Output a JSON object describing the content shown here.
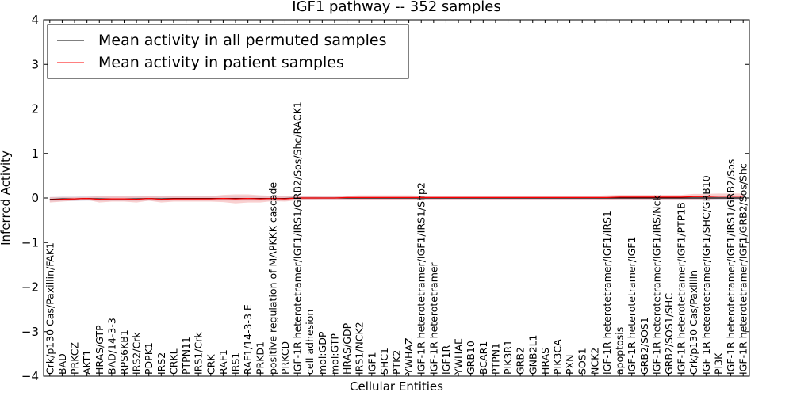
{
  "chart_data": {
    "type": "line",
    "title": "IGF1 pathway -- 352 samples",
    "xlabel": "Cellular Entities",
    "ylabel": "Inferred Activity",
    "ylim": [
      -4,
      4
    ],
    "yticks": [
      -4,
      -3,
      -2,
      -1,
      0,
      1,
      2,
      3,
      4
    ],
    "ytick_labels": [
      "−4",
      "−3",
      "−2",
      "−1",
      "0",
      "1",
      "2",
      "3",
      "4"
    ],
    "grid": false,
    "legend_position": "top-left",
    "colors": {
      "permuted": "#000000",
      "patient": "#ff0000",
      "patient_band": "#f4a9a9",
      "permuted_band": "#c8c8dc"
    },
    "categories": [
      "Crk/p130 Cas/Paxillin/FAK1",
      "BAD",
      "PRKCZ",
      "AKT1",
      "HRAS/GTP",
      "BAD/14-3-3",
      "RPS6KB1",
      "IRS2/Crk",
      "PDPK1",
      "IRS2",
      "CRKL",
      "PTPN11",
      "IRS1/Crk",
      "CRK",
      "RAF1",
      "IRS1",
      "RAF1/14-3-3 E",
      "PRKD1",
      "positive regulation of MAPKKK cascade",
      "PRKCD",
      "IGF-1R heterotetramer/IGF1/IRS1/GRB2/Sos/Shc/RACK1",
      "cell adhesion",
      "mol:GDP",
      "mol:GTP",
      "HRAS/GDP",
      "IRS1/NCK2",
      "IGF1",
      "SHC1",
      "PTK2",
      "YWHAZ",
      "IGF-1R heterotetramer/IGF1/IRS1/Shp2",
      "IGF-1R heterotetramer",
      "IGF1R",
      "YWHAE",
      "GRB10",
      "BCAR1",
      "PTPN1",
      "PIK3R1",
      "GRB2",
      "GNB2L1",
      "HRAS",
      "PIK3CA",
      "PXN",
      "SOS1",
      "NCK2",
      "IGF-1R heterotetramer/IGF1/IRS1",
      "apoptosis",
      "IGF-1R heterotetramer/IGF1",
      "GRB2/SOS1",
      "IGF-1R heterotetramer/IGF1/IRS/Nck",
      "GRB2/SOS1/SHC",
      "IGF-1R heterotetramer/IGF1/PTP1B",
      "Crk/p130 Cas/Paxillin",
      "IGF-1R heterotetramer/IGF1/SHC/GRB10",
      "PI3K",
      "IGF-1R heterotetramer/IGF1/IRS1/GRB2/Sos",
      "IGF-1R heterotetramer/IGF1/GRB2/Sos/Shc"
    ],
    "series": [
      {
        "name": "Mean activity in all permuted samples",
        "color": "#000000",
        "values": [
          -0.03,
          -0.02,
          -0.02,
          -0.01,
          -0.02,
          -0.02,
          -0.02,
          -0.02,
          -0.01,
          -0.02,
          -0.01,
          -0.01,
          -0.01,
          -0.01,
          -0.01,
          -0.01,
          -0.01,
          -0.01,
          -0.01,
          -0.01,
          0.0,
          0.0,
          0.0,
          0.0,
          0.0,
          0.0,
          0.0,
          0.0,
          0.0,
          0.0,
          0.0,
          0.0,
          0.0,
          0.0,
          0.0,
          0.0,
          0.0,
          0.0,
          0.0,
          0.0,
          0.0,
          0.0,
          0.0,
          0.0,
          0.0,
          0.0,
          0.0,
          0.0,
          0.0,
          0.0,
          0.0,
          0.0,
          0.0,
          0.0,
          0.0,
          0.0,
          0.0
        ]
      },
      {
        "name": "Mean activity in patient samples",
        "color": "#ff0000",
        "values": [
          -0.04,
          -0.03,
          -0.02,
          -0.01,
          -0.03,
          -0.02,
          -0.02,
          -0.03,
          -0.01,
          -0.03,
          -0.02,
          -0.02,
          -0.02,
          -0.02,
          -0.01,
          -0.02,
          -0.01,
          -0.02,
          -0.01,
          -0.02,
          0.0,
          0.0,
          0.0,
          0.0,
          0.01,
          0.01,
          0.01,
          0.01,
          0.01,
          0.01,
          0.01,
          0.01,
          0.01,
          0.01,
          0.01,
          0.01,
          0.01,
          0.01,
          0.01,
          0.01,
          0.01,
          0.01,
          0.01,
          0.01,
          0.01,
          0.01,
          0.02,
          0.02,
          0.02,
          0.02,
          0.02,
          0.02,
          0.03,
          0.03,
          0.04,
          0.04,
          0.04
        ],
        "band_halfwidth": [
          0.06,
          0.05,
          0.04,
          0.03,
          0.07,
          0.06,
          0.06,
          0.07,
          0.05,
          0.07,
          0.06,
          0.06,
          0.06,
          0.06,
          0.08,
          0.1,
          0.09,
          0.08,
          0.06,
          0.06,
          0.05,
          0.04,
          0.03,
          0.03,
          0.04,
          0.05,
          0.05,
          0.05,
          0.05,
          0.05,
          0.04,
          0.04,
          0.04,
          0.04,
          0.04,
          0.04,
          0.04,
          0.04,
          0.04,
          0.04,
          0.04,
          0.04,
          0.04,
          0.04,
          0.04,
          0.05,
          0.05,
          0.05,
          0.05,
          0.05,
          0.05,
          0.05,
          0.06,
          0.06,
          0.06,
          0.06,
          0.06
        ]
      }
    ]
  }
}
